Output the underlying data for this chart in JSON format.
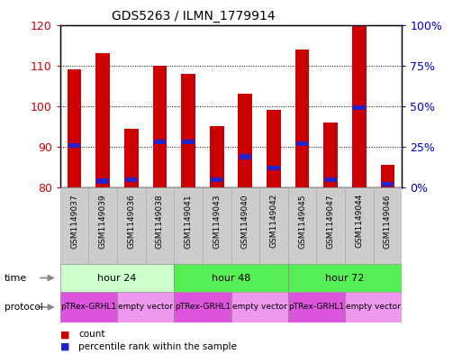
{
  "title": "GDS5263 / ILMN_1779914",
  "samples": [
    "GSM1149037",
    "GSM1149039",
    "GSM1149036",
    "GSM1149038",
    "GSM1149041",
    "GSM1149043",
    "GSM1149040",
    "GSM1149042",
    "GSM1149045",
    "GSM1149047",
    "GSM1149044",
    "GSM1149046"
  ],
  "counts": [
    109,
    113,
    94.5,
    110,
    108,
    95,
    103,
    99,
    114,
    96,
    120,
    85.5
  ],
  "percentile_ranks": [
    26,
    4,
    5,
    28,
    28,
    5,
    19,
    12,
    27,
    5,
    49,
    2
  ],
  "ylim_left": [
    80,
    120
  ],
  "ylim_right": [
    0,
    100
  ],
  "yticks_left": [
    80,
    90,
    100,
    110,
    120
  ],
  "yticks_right": [
    0,
    25,
    50,
    75,
    100
  ],
  "ytick_labels_right": [
    "0%",
    "25%",
    "50%",
    "75%",
    "100%"
  ],
  "bar_color": "#cc0000",
  "percentile_color": "#2222cc",
  "bar_width": 0.5,
  "time_groups": [
    {
      "label": "hour 24",
      "cols": [
        0,
        1,
        2,
        3
      ],
      "color": "#ccffcc"
    },
    {
      "label": "hour 48",
      "cols": [
        4,
        5,
        6,
        7
      ],
      "color": "#55ee55"
    },
    {
      "label": "hour 72",
      "cols": [
        8,
        9,
        10,
        11
      ],
      "color": "#55ee55"
    }
  ],
  "protocol_groups": [
    {
      "label": "pTRex-GRHL1",
      "cols": [
        0,
        1
      ],
      "color": "#dd55dd"
    },
    {
      "label": "empty vector",
      "cols": [
        2,
        3
      ],
      "color": "#ee99ee"
    },
    {
      "label": "pTRex-GRHL1",
      "cols": [
        4,
        5
      ],
      "color": "#dd55dd"
    },
    {
      "label": "empty vector",
      "cols": [
        6,
        7
      ],
      "color": "#ee99ee"
    },
    {
      "label": "pTRex-GRHL1",
      "cols": [
        8,
        9
      ],
      "color": "#dd55dd"
    },
    {
      "label": "empty vector",
      "cols": [
        10,
        11
      ],
      "color": "#ee99ee"
    }
  ],
  "bg_color": "#ffffff",
  "axis_label_color_left": "#cc0000",
  "axis_label_color_right": "#0000cc",
  "label_bg_color": "#cccccc",
  "time_arrow_color": "#888888",
  "protocol_arrow_color": "#888888"
}
